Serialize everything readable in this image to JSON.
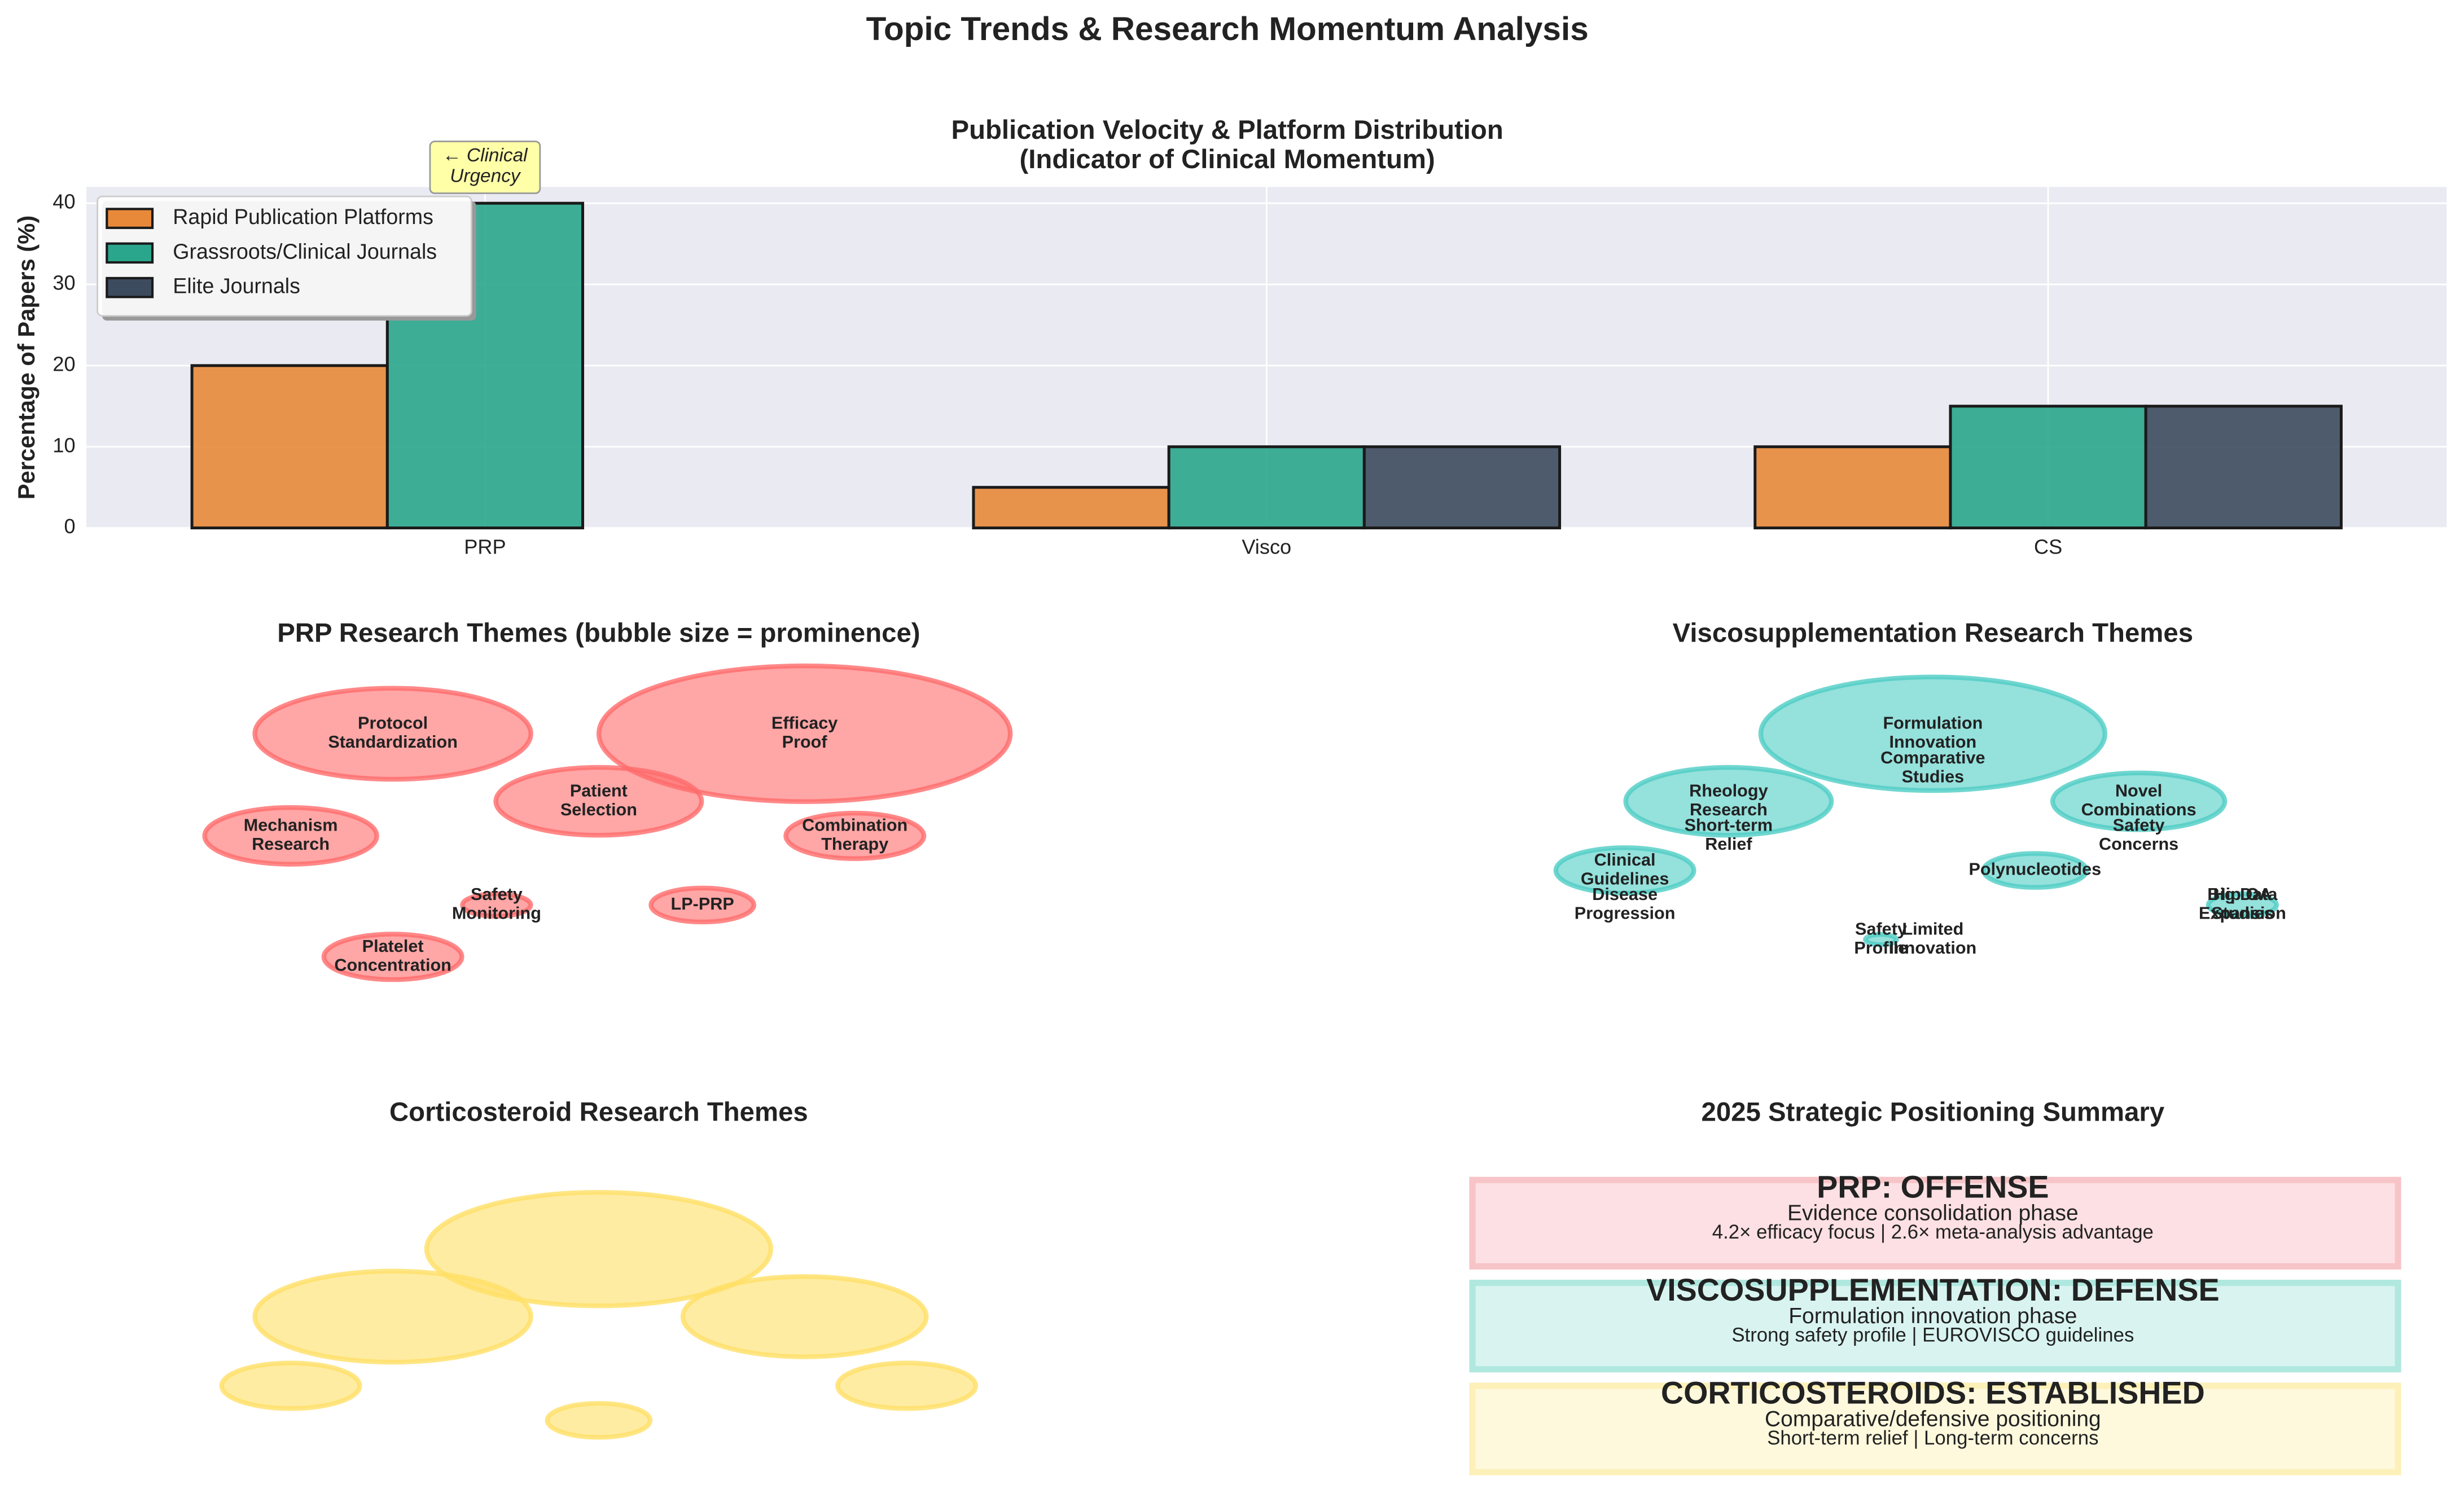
{
  "title": "Topic Trends & Research Momentum Analysis",
  "chart_data": [
    {
      "type": "bar",
      "title": "Publication Velocity & Platform Distribution\n(Indicator of Clinical Momentum)",
      "y_label": "Percentage of Papers (%)",
      "categories": [
        "PRP",
        "Visco",
        "CS"
      ],
      "series": [
        {
          "name": "Rapid Publication Platforms",
          "color": "#e8893a",
          "values": [
            20,
            5,
            10
          ]
        },
        {
          "name": "Grassroots/Clinical Journals",
          "color": "#2aa68c",
          "values": [
            40,
            10,
            15
          ]
        },
        {
          "name": "Elite Journals",
          "color": "#3d4b5e",
          "values": [
            0,
            10,
            15
          ]
        }
      ],
      "ylim": [
        0,
        42
      ],
      "yticks": [
        0,
        10,
        20,
        30,
        40
      ],
      "grid": true,
      "legend": "upper left",
      "annotation": "← Clinical\nUrgency"
    },
    {
      "type": "bubble",
      "title": "PRP Research Themes (bubble size = prominence)",
      "color": "#ff6b6b",
      "labels": [
        "Efficacy\nProof",
        "Protocol\nStandardization",
        "Patient\nSelection",
        "Mechanism\nResearch",
        "Combination\nTherapy",
        "Safety\nMonitoring",
        "LP-PRP",
        "Platelet\nConcentration"
      ],
      "values": [
        40,
        18,
        10,
        7,
        4.5,
        1.1,
        2.5,
        4.5
      ]
    },
    {
      "type": "bubble",
      "title": "Viscosupplementation Research Themes",
      "color": "#4ecdc4",
      "labels": [
        "Formulation\nInnovation",
        "Rheology\nResearch",
        "Novel\nCombinations",
        "Clinical\nGuidelines",
        "Polynucleotides",
        "Safety\nProfile",
        "Hip OA\nExpansion",
        "Comparative\nStudies",
        "Short-term\nRelief",
        "Safety\nConcerns",
        "Disease\nProgression",
        "Limited\nInnovation",
        "Big Data\nStudies"
      ],
      "values": [
        28,
        10,
        7,
        4.5,
        2.5,
        0.23,
        1.1,
        null,
        null,
        null,
        null,
        null,
        null
      ]
    },
    {
      "type": "bubble",
      "title": "Corticosteroid Research Themes",
      "color": "#ffe066",
      "values": [
        28,
        18,
        14,
        4.5,
        4.5,
        2.5
      ]
    }
  ],
  "summary": {
    "title": "2025 Strategic Positioning Summary",
    "items": [
      {
        "heading": "PRP: OFFENSE",
        "line1": "Evidence consolidation phase",
        "line2": "4.2× efficacy focus | 2.6× meta-analysis advantage",
        "color": "#c0392b",
        "background": "#fde0e3",
        "border": "#f7c4c8"
      },
      {
        "heading": "VISCOSUPPLEMENTATION: DEFENSE",
        "line1": "Formulation innovation phase",
        "line2": "Strong safety profile | EUROVISCO guidelines",
        "color": "#117a65",
        "background": "#d9f4f0",
        "border": "#b0e8df"
      },
      {
        "heading": "CORTICOSTEROIDS: ESTABLISHED",
        "line1": "Comparative/defensive positioning",
        "line2": "Short-term relief | Long-term concerns",
        "color": "#b7860b",
        "background": "#fef9dd",
        "border": "#fdf0b8"
      }
    ]
  }
}
